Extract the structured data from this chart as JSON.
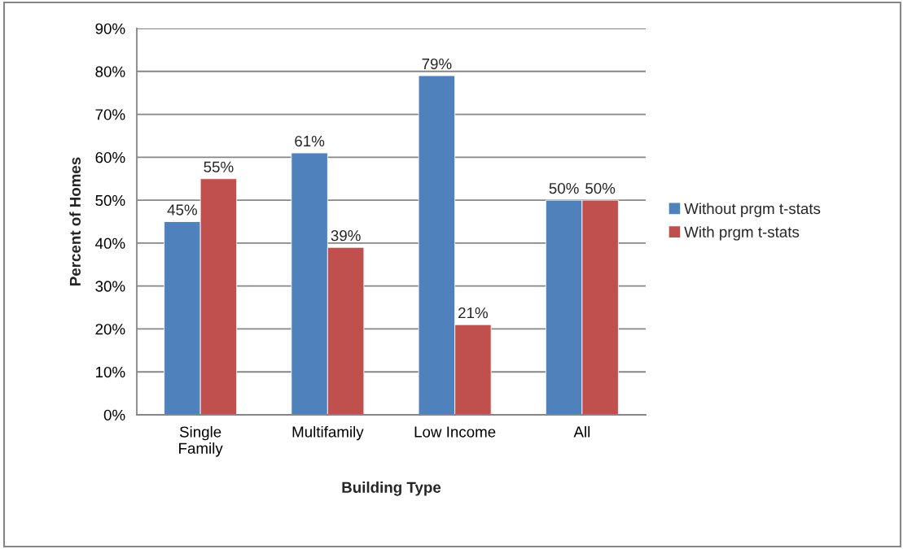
{
  "chart_data": {
    "type": "bar",
    "categories": [
      "Single\nFamily",
      "Multifamily",
      "Low Income",
      "All"
    ],
    "xlabel": "Building Type",
    "ylabel": "Percent of Homes",
    "series": [
      {
        "name": "Without prgm t-stats",
        "color": "#4f81bd",
        "values": [
          45,
          61,
          79,
          50
        ],
        "value_labels": [
          "45%",
          "61%",
          "79%",
          "50%"
        ]
      },
      {
        "name": "With prgm t-stats",
        "color": "#c0504d",
        "values": [
          55,
          39,
          21,
          50
        ],
        "value_labels": [
          "55%",
          "39%",
          "21%",
          "50%"
        ]
      }
    ],
    "ylim": [
      0,
      90
    ],
    "yticks": [
      {
        "value": 0,
        "label": "0%"
      },
      {
        "value": 10,
        "label": "10%"
      },
      {
        "value": 20,
        "label": "20%"
      },
      {
        "value": 30,
        "label": "30%"
      },
      {
        "value": 40,
        "label": "40%"
      },
      {
        "value": 50,
        "label": "50%"
      },
      {
        "value": 60,
        "label": "60%"
      },
      {
        "value": 70,
        "label": "70%"
      },
      {
        "value": 80,
        "label": "80%"
      },
      {
        "value": 90,
        "label": "90%"
      }
    ],
    "grid": "y",
    "legend": "right"
  }
}
